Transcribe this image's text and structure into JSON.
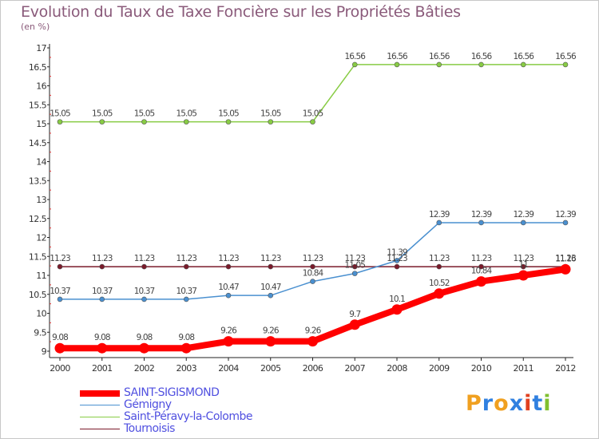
{
  "chart_data": {
    "type": "line",
    "title": "Evolution du Taux de Taxe Foncière sur les Propriétés Bâties",
    "subtitle": "(en %)",
    "x": [
      "2000",
      "2001",
      "2002",
      "2003",
      "2004",
      "2005",
      "2006",
      "2007",
      "2008",
      "2009",
      "2010",
      "2011",
      "2012"
    ],
    "ylim": [
      9,
      17
    ],
    "yticks": [
      "9",
      "9.5",
      "10",
      "10.5",
      "11",
      "11.5",
      "12",
      "12.5",
      "13",
      "13.5",
      "14",
      "14.5",
      "15",
      "15.5",
      "16",
      "16.5",
      "17"
    ],
    "grid": false,
    "legend_position": "bottom-left",
    "series": [
      {
        "name": "SAINT-SIGISMOND",
        "color": "#ff0000",
        "width": "thick",
        "values": [
          9.08,
          9.08,
          9.08,
          9.08,
          9.26,
          9.26,
          9.26,
          9.7,
          10.1,
          10.52,
          10.84,
          11,
          11.16
        ],
        "labels": [
          "9.08",
          "9.08",
          "9.08",
          "9.08",
          "9.26",
          "9.26",
          "9.26",
          "9.7",
          "10.1",
          "10.52",
          "10.84",
          "11",
          "11.16"
        ]
      },
      {
        "name": "Gémigny",
        "color": "#4a90d0",
        "width": "thin",
        "values": [
          10.37,
          10.37,
          10.37,
          10.37,
          10.47,
          10.47,
          10.84,
          11.05,
          11.39,
          12.39,
          12.39,
          12.39,
          12.39
        ],
        "labels": [
          "10.37",
          "10.37",
          "10.37",
          "10.37",
          "10.47",
          "10.47",
          "10.84",
          "11.05",
          "11.39",
          "12.39",
          "12.39",
          "12.39",
          "12.39"
        ]
      },
      {
        "name": "Saint-Péravy-la-Colombe",
        "color": "#88cc44",
        "width": "thin",
        "values": [
          15.05,
          15.05,
          15.05,
          15.05,
          15.05,
          15.05,
          15.05,
          16.56,
          16.56,
          16.56,
          16.56,
          16.56,
          16.56
        ],
        "labels": [
          "15.05",
          "15.05",
          "15.05",
          "15.05",
          "15.05",
          "15.05",
          "15.05",
          "16.56",
          "16.56",
          "16.56",
          "16.56",
          "16.56",
          "16.56"
        ]
      },
      {
        "name": "Tournoisis",
        "color": "#7a1a2a",
        "width": "thin",
        "values": [
          11.23,
          11.23,
          11.23,
          11.23,
          11.23,
          11.23,
          11.23,
          11.23,
          11.23,
          11.23,
          11.23,
          11.23,
          11.23
        ],
        "labels": [
          "11.23",
          "11.23",
          "11.23",
          "11.23",
          "11.23",
          "11.23",
          "11.23",
          "11.23",
          "11.23",
          "11.23",
          "11.23",
          "11.23",
          "11.23"
        ]
      }
    ]
  },
  "logo": {
    "letters": [
      "P",
      "r",
      "o",
      "x",
      "i",
      "t",
      "i"
    ],
    "colors": [
      "#f0a020",
      "#3080e0",
      "#f0a020",
      "#3080e0",
      "#e04020",
      "#3080e0",
      "#80c030"
    ]
  }
}
